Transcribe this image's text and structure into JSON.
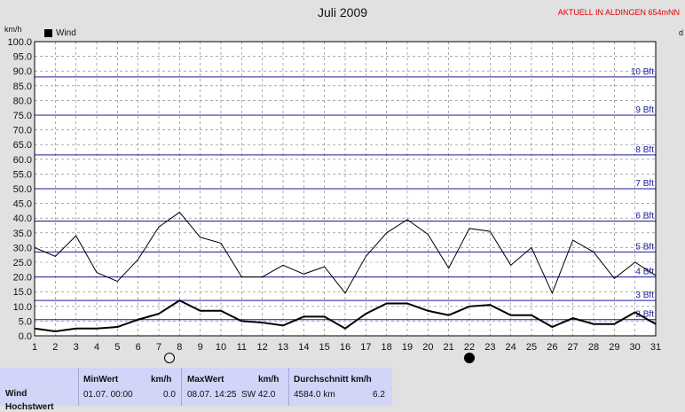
{
  "header": {
    "title": "Juli 2009",
    "banner": "AKTUELL IN ALDINGEN 654mNN",
    "unit_left": "km/h",
    "unit_right": "d"
  },
  "legend": {
    "label": "Wind"
  },
  "moon_phases": [
    {
      "day": 7.5,
      "type": "full"
    },
    {
      "day": 22,
      "type": "new"
    }
  ],
  "stats": {
    "row_label": "Wind",
    "row_label_2": "Hochstwert",
    "headers": {
      "min": "MinWert",
      "min_unit": "km/h",
      "max": "MaxWert",
      "max_unit": "km/h",
      "avg": "Durchschnitt km/h"
    },
    "values": {
      "min_date": "01.07.  00:00",
      "min_value": "0.0",
      "max_date": "08.07.  14:25",
      "max_value": "SW 42.0",
      "avg_distance": "4584.0 km",
      "avg_value": "6.2"
    }
  },
  "chart_data": {
    "type": "line",
    "title": "Juli 2009",
    "ylabel": "km/h",
    "ylim": [
      0,
      100
    ],
    "xlim": [
      1,
      31
    ],
    "y_ticks": [
      0,
      5,
      10,
      15,
      20,
      25,
      30,
      35,
      40,
      45,
      50,
      55,
      60,
      65,
      70,
      75,
      80,
      85,
      90,
      95,
      100
    ],
    "y_tick_labels": [
      "0.0",
      "5.0",
      "10.0",
      "15.0",
      "20.0",
      "25.0",
      "30.0",
      "35.0",
      "40.0",
      "45.0",
      "50.0",
      "55.0",
      "60.0",
      "65.0",
      "70.0",
      "75.0",
      "80.0",
      "85.0",
      "90.0",
      "95.0",
      "100.0"
    ],
    "x_ticks": [
      1,
      2,
      3,
      4,
      5,
      6,
      7,
      8,
      9,
      10,
      11,
      12,
      13,
      14,
      15,
      16,
      17,
      18,
      19,
      20,
      21,
      22,
      23,
      24,
      25,
      26,
      27,
      28,
      29,
      30,
      31
    ],
    "grid": true,
    "legend_position": "top-left",
    "beaufort_lines": [
      {
        "label": "2 Bft",
        "value": 5.5
      },
      {
        "label": "3 Bft",
        "value": 12
      },
      {
        "label": "4 Bft",
        "value": 20
      },
      {
        "label": "5 Bft",
        "value": 28.5
      },
      {
        "label": "6 Bft",
        "value": 39
      },
      {
        "label": "7 Bft",
        "value": 50
      },
      {
        "label": "8 Bft",
        "value": 61.5
      },
      {
        "label": "9 Bft",
        "value": 75
      },
      {
        "label": "10 Bft",
        "value": 88
      }
    ],
    "series": [
      {
        "name": "Wind",
        "values": [
          2.5,
          1.5,
          2.5,
          2.5,
          3,
          5.5,
          7.5,
          12,
          8.5,
          8.5,
          5,
          4.5,
          3.5,
          6.5,
          6.5,
          2.5,
          7.5,
          11,
          11,
          8.5,
          7,
          10,
          10.5,
          7,
          7,
          3,
          6,
          4,
          4,
          8,
          4
        ]
      },
      {
        "values": [
          30,
          27,
          34,
          21.5,
          18.5,
          26,
          37,
          42,
          33.5,
          31.5,
          20,
          20,
          24,
          21,
          23.5,
          14.5,
          27,
          35,
          39.5,
          34.5,
          23,
          36.5,
          35.5,
          24,
          30,
          14.5,
          32.5,
          28.5,
          19.5,
          25,
          20.5
        ]
      }
    ]
  }
}
